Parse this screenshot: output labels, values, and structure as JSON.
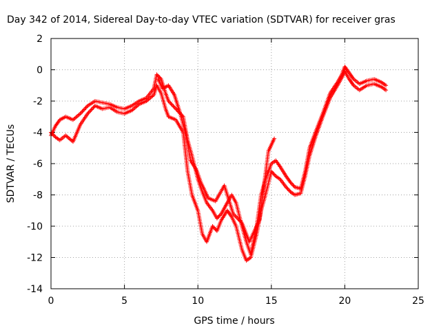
{
  "chart_data": {
    "type": "scatter",
    "title": "Day 342 of 2014, Sidereal Day-to-day VTEC variation (SDTVAR) for receiver gras",
    "xlabel": "GPS time / hours",
    "ylabel": "SDTVAR / TECUs",
    "xlim": [
      0,
      25
    ],
    "ylim": [
      -14,
      2
    ],
    "xticks": [
      0,
      5,
      10,
      15,
      20,
      25
    ],
    "yticks": [
      -14,
      -12,
      -10,
      -8,
      -6,
      -4,
      -2,
      0,
      2
    ],
    "grid": true,
    "marker": "+",
    "color": "#ff0000",
    "series": [
      {
        "x": [
          0.0,
          0.3,
          0.6,
          1.0,
          1.5,
          2.0,
          2.5,
          3.0,
          3.5,
          4.0,
          4.5,
          5.0,
          5.5,
          6.0,
          6.5,
          7.0,
          7.2,
          7.5,
          7.8,
          8.0,
          8.5,
          9.0,
          9.3,
          9.6,
          10.0,
          10.3,
          10.6,
          11.0,
          11.3,
          11.6,
          12.0,
          12.3,
          12.6,
          13.0,
          13.3,
          13.6,
          14.0,
          14.3,
          14.6,
          15.0,
          15.3,
          15.6,
          16.0,
          16.3,
          16.6,
          17.0,
          17.3,
          17.6,
          18.0,
          18.5,
          19.0,
          19.5,
          19.8,
          20.0,
          20.3,
          20.6,
          21.0,
          21.5,
          22.0,
          22.5,
          22.8
        ],
        "y": [
          -4.2,
          -3.6,
          -3.2,
          -3.0,
          -3.2,
          -2.8,
          -2.3,
          -2.0,
          -2.1,
          -2.2,
          -2.4,
          -2.5,
          -2.3,
          -2.0,
          -1.8,
          -1.2,
          -0.3,
          -0.6,
          -1.5,
          -2.0,
          -2.5,
          -3.0,
          -4.5,
          -5.5,
          -7.0,
          -7.8,
          -8.5,
          -9.0,
          -9.5,
          -9.2,
          -8.5,
          -8.0,
          -8.5,
          -10.0,
          -11.0,
          -11.8,
          -10.0,
          -8.0,
          -7.0,
          -6.0,
          -5.8,
          -6.2,
          -6.8,
          -7.2,
          -7.5,
          -7.6,
          -6.5,
          -5.0,
          -4.0,
          -2.8,
          -1.5,
          -0.8,
          -0.3,
          0.2,
          -0.2,
          -0.6,
          -0.9,
          -0.7,
          -0.6,
          -0.8,
          -1.0
        ]
      },
      {
        "x": [
          0.0,
          0.3,
          0.6,
          1.0,
          1.5,
          2.0,
          2.5,
          3.0,
          3.5,
          4.0,
          4.5,
          5.0,
          5.5,
          6.0,
          6.5,
          7.0,
          7.2,
          7.5,
          7.8,
          8.0,
          8.5,
          9.0,
          9.3,
          9.6,
          10.0,
          10.3,
          10.6,
          11.0,
          11.3,
          11.6,
          12.0,
          12.3,
          12.6,
          13.0,
          13.3,
          13.6,
          14.0,
          14.3,
          14.6,
          15.0,
          15.3,
          15.6,
          16.0,
          16.3,
          16.6,
          17.0,
          17.3,
          17.6,
          18.0,
          18.5,
          19.0,
          19.5,
          19.8,
          20.0,
          20.3,
          20.6,
          21.0,
          21.5,
          22.0,
          22.5,
          22.8
        ],
        "y": [
          -4.0,
          -4.3,
          -4.5,
          -4.2,
          -4.6,
          -3.5,
          -2.8,
          -2.3,
          -2.5,
          -2.4,
          -2.7,
          -2.8,
          -2.6,
          -2.2,
          -2.0,
          -1.6,
          -1.0,
          -1.5,
          -2.5,
          -3.0,
          -3.2,
          -4.0,
          -6.5,
          -8.0,
          -9.0,
          -10.5,
          -11.0,
          -10.0,
          -10.3,
          -9.6,
          -9.0,
          -9.4,
          -10.0,
          -11.5,
          -12.2,
          -12.0,
          -10.5,
          -9.0,
          -8.0,
          -6.5,
          -6.8,
          -7.0,
          -7.5,
          -7.8,
          -8.0,
          -7.9,
          -6.8,
          -5.5,
          -4.3,
          -3.0,
          -1.8,
          -1.0,
          -0.5,
          -0.1,
          -0.6,
          -1.0,
          -1.3,
          -1.0,
          -0.9,
          -1.1,
          -1.3
        ]
      },
      {
        "x": [
          7.3,
          7.6,
          8.0,
          8.4,
          8.8,
          9.2,
          9.5,
          9.9,
          10.2,
          10.7,
          11.2,
          11.8,
          12.4,
          13.0,
          13.5,
          14.2,
          14.8,
          15.2
        ],
        "y": [
          -0.6,
          -1.2,
          -1.0,
          -1.6,
          -2.8,
          -4.2,
          -5.8,
          -6.4,
          -7.2,
          -8.2,
          -8.4,
          -7.4,
          -9.2,
          -9.8,
          -11.0,
          -9.6,
          -5.2,
          -4.4
        ]
      }
    ]
  }
}
